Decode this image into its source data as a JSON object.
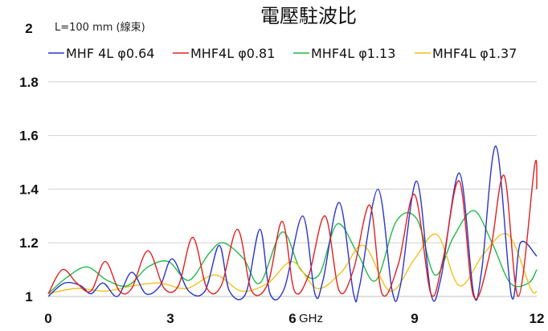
{
  "chart_data": {
    "type": "line",
    "title": "電壓駐波比",
    "annotation": "L=100 mm (線束)",
    "x_unit": "GHz",
    "xlim": [
      0,
      12
    ],
    "ylim": [
      1,
      2
    ],
    "x_ticks": [
      "0",
      "3",
      "6",
      "9",
      "12"
    ],
    "y_ticks": [
      "1",
      "1.2",
      "1.4",
      "1.6",
      "1.8",
      "2"
    ],
    "grid": "horizontal",
    "legend_position": "top",
    "series": [
      {
        "name": "MHF 4L φ0.64",
        "color": "#2b35c8",
        "x": [
          0.0,
          0.4,
          0.8,
          1.05,
          1.35,
          1.7,
          2.05,
          2.4,
          2.75,
          3.05,
          3.45,
          3.85,
          4.2,
          4.45,
          4.85,
          5.2,
          5.45,
          5.8,
          6.25,
          6.55,
          6.75,
          7.15,
          7.5,
          7.65,
          8.1,
          8.45,
          8.65,
          9.05,
          9.4,
          9.65,
          10.1,
          10.45,
          10.65,
          11.0,
          11.38,
          11.6,
          12.0
        ],
        "y": [
          1.0,
          1.05,
          1.04,
          1.01,
          1.05,
          1.0,
          1.09,
          1.01,
          1.04,
          1.14,
          1.02,
          1.02,
          1.19,
          1.02,
          1.01,
          1.25,
          1.01,
          1.03,
          1.3,
          1.01,
          1.06,
          1.35,
          1.01,
          1.04,
          1.4,
          1.02,
          1.04,
          1.43,
          1.01,
          1.07,
          1.46,
          1.01,
          1.1,
          1.56,
          1.0,
          1.2,
          1.15
        ]
      },
      {
        "name": "MHF4L φ0.81",
        "color": "#e02020",
        "x": [
          0.0,
          0.35,
          0.7,
          1.05,
          1.4,
          1.75,
          2.05,
          2.45,
          2.85,
          3.2,
          3.55,
          3.9,
          4.25,
          4.65,
          5.0,
          5.4,
          5.75,
          6.05,
          6.4,
          6.8,
          7.15,
          7.5,
          7.9,
          8.2,
          8.6,
          9.0,
          9.4,
          9.7,
          10.1,
          10.45,
          10.85,
          11.2,
          11.55,
          11.95,
          12.0
        ],
        "y": [
          1.01,
          1.1,
          1.05,
          1.02,
          1.13,
          1.02,
          1.03,
          1.17,
          1.03,
          1.04,
          1.22,
          1.03,
          1.04,
          1.25,
          1.02,
          1.05,
          1.28,
          1.02,
          1.08,
          1.3,
          1.02,
          1.1,
          1.34,
          1.01,
          1.12,
          1.38,
          1.01,
          1.14,
          1.43,
          1.0,
          1.16,
          1.45,
          1.0,
          1.49,
          1.4
        ]
      },
      {
        "name": "MHF4L φ1.13",
        "color": "#25b84a",
        "x": [
          0.0,
          0.45,
          0.95,
          1.45,
          1.95,
          2.45,
          2.95,
          3.45,
          3.95,
          4.3,
          4.8,
          5.2,
          5.75,
          6.2,
          6.65,
          7.1,
          7.6,
          8.05,
          8.55,
          9.05,
          9.5,
          9.95,
          10.45,
          10.9,
          11.35,
          11.8,
          12.0
        ],
        "y": [
          1.01,
          1.07,
          1.11,
          1.06,
          1.04,
          1.11,
          1.13,
          1.06,
          1.16,
          1.2,
          1.14,
          1.05,
          1.24,
          1.1,
          1.08,
          1.27,
          1.16,
          1.06,
          1.28,
          1.29,
          1.08,
          1.22,
          1.32,
          1.2,
          1.05,
          1.05,
          1.1
        ]
      },
      {
        "name": "MHF4L φ1.37",
        "color": "#f0c020",
        "x": [
          0.0,
          0.7,
          1.4,
          2.1,
          2.75,
          3.4,
          4.1,
          4.75,
          5.4,
          6.0,
          6.6,
          7.2,
          7.75,
          8.4,
          9.0,
          9.55,
          10.1,
          10.7,
          11.3,
          11.85,
          12.0
        ],
        "y": [
          1.01,
          1.03,
          1.02,
          1.04,
          1.05,
          1.03,
          1.08,
          1.02,
          1.05,
          1.13,
          1.03,
          1.09,
          1.19,
          1.02,
          1.14,
          1.23,
          1.04,
          1.16,
          1.23,
          1.03,
          1.02
        ]
      }
    ]
  }
}
